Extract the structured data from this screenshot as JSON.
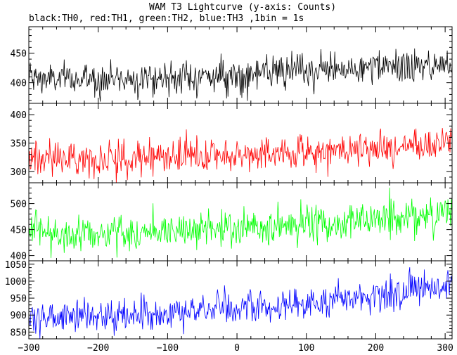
{
  "chart_data": {
    "type": "line",
    "title": "WAM T3 Lightcurve (y-axis: Counts)",
    "subtitle": "black:TH0, red:TH1, green:TH2, blue:TH3 ,1bin = 1s",
    "xlabel": "",
    "ylabel": "",
    "xlim": [
      -300,
      310
    ],
    "x_ticks": [
      -300,
      -200,
      -100,
      0,
      100,
      200,
      300
    ],
    "x_tick_labels": [
      "−300",
      "−200",
      "−100",
      "0",
      "100",
      "200",
      "300"
    ],
    "bin_seconds": 1,
    "noise_model": "Gaussian random counts around the mean trend; values approximated from the plotted band",
    "series": [
      {
        "color": "#000000",
        "ylim": [
          365,
          495
        ],
        "y_ticks": [
          400,
          450
        ],
        "mean_trend": [
          [
            -300,
            408
          ],
          [
            -250,
            405
          ],
          [
            -150,
            408
          ],
          [
            -50,
            410
          ],
          [
            0,
            412
          ],
          [
            100,
            420
          ],
          [
            200,
            425
          ],
          [
            310,
            430
          ]
        ],
        "noise_sd": 14
      },
      {
        "color": "#ff0000",
        "ylim": [
          280,
          420
        ],
        "y_ticks": [
          300,
          350,
          400
        ],
        "mean_trend": [
          [
            -300,
            325
          ],
          [
            -200,
            322
          ],
          [
            -100,
            326
          ],
          [
            0,
            328
          ],
          [
            100,
            335
          ],
          [
            200,
            338
          ],
          [
            310,
            352
          ]
        ],
        "noise_sd": 15
      },
      {
        "color": "#00ff00",
        "ylim": [
          390,
          540
        ],
        "y_ticks": [
          400,
          450,
          500
        ],
        "mean_trend": [
          [
            -300,
            445
          ],
          [
            -200,
            442
          ],
          [
            -100,
            448
          ],
          [
            0,
            452
          ],
          [
            100,
            458
          ],
          [
            200,
            470
          ],
          [
            310,
            485
          ]
        ],
        "noise_sd": 18
      },
      {
        "color": "#0000ff",
        "ylim": [
          830,
          1060
        ],
        "y_ticks": [
          850,
          900,
          950,
          1000,
          1050
        ],
        "mean_trend": [
          [
            -300,
            895
          ],
          [
            -200,
            895
          ],
          [
            -100,
            905
          ],
          [
            0,
            920
          ],
          [
            100,
            935
          ],
          [
            200,
            955
          ],
          [
            250,
            975
          ],
          [
            310,
            985
          ]
        ],
        "noise_sd": 24
      }
    ]
  }
}
